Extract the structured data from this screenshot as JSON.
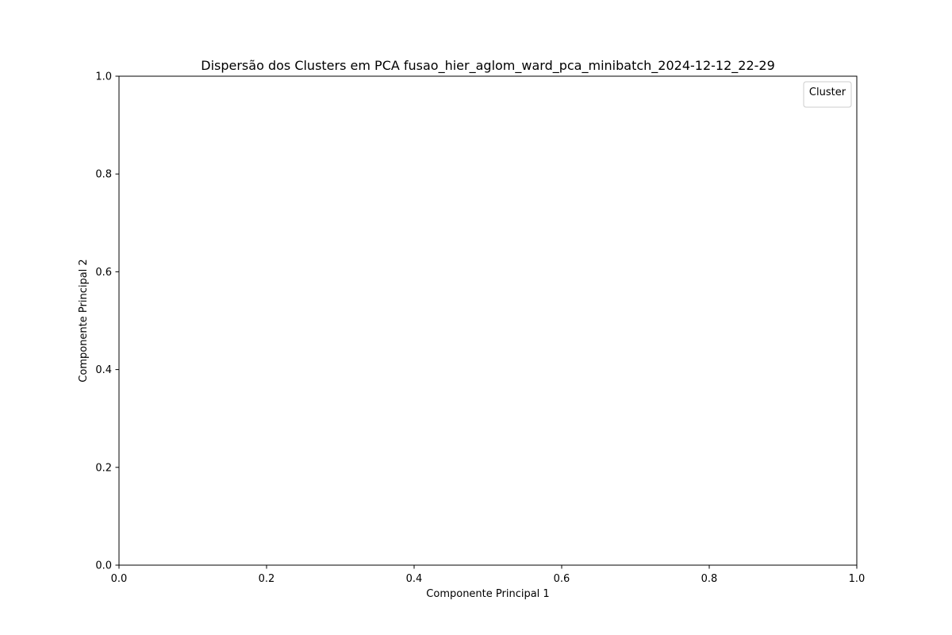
{
  "chart_data": {
    "type": "scatter",
    "title": "Dispersão dos Clusters em PCA fusao_hier_aglom_ward_pca_minibatch_2024-12-12_22-29",
    "xlabel": "Componente Principal 1",
    "ylabel": "Componente Principal 2",
    "xlim": [
      0.0,
      1.0
    ],
    "ylim": [
      0.0,
      1.0
    ],
    "x_ticks": [
      "0.0",
      "0.2",
      "0.4",
      "0.6",
      "0.8",
      "1.0"
    ],
    "y_ticks": [
      "0.0",
      "0.2",
      "0.4",
      "0.6",
      "0.8",
      "1.0"
    ],
    "series": [],
    "legend": {
      "title": "Cluster",
      "position": "top-right",
      "entries": []
    },
    "grid": false
  }
}
